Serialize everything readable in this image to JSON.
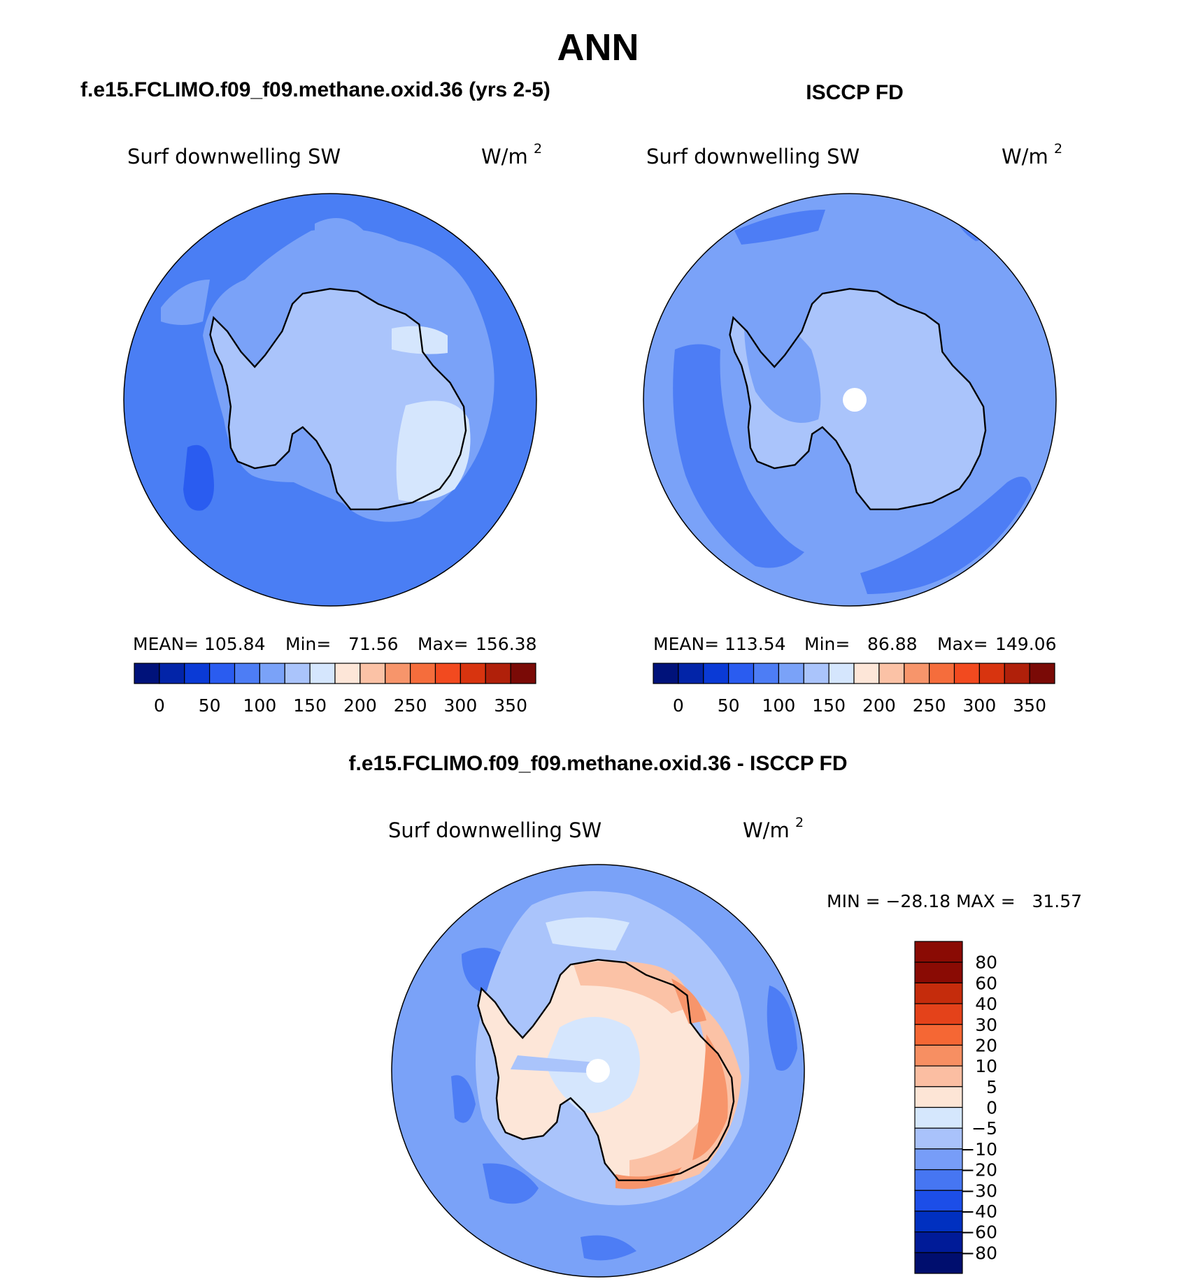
{
  "figure": {
    "title": "ANN",
    "panels": [
      {
        "id": "model",
        "header": "f.e15.FCLIMO.f09_f09.methane.oxid.36 (yrs 2-5)",
        "variable": "Surf downwelling SW",
        "units_base": "W/m",
        "units_exp": "2",
        "stats": {
          "mean_label": "MEAN=",
          "mean": "105.84",
          "min_label": "Min=",
          "min": "71.56",
          "max_label": "Max=",
          "max": "156.38"
        }
      },
      {
        "id": "obs",
        "header": "ISCCP FD",
        "variable": "Surf downwelling SW",
        "units_base": "W/m",
        "units_exp": "2",
        "stats": {
          "mean_label": "MEAN=",
          "mean": "113.54",
          "min_label": "Min=",
          "min": "86.88",
          "max_label": "Max=",
          "max": "149.06"
        }
      },
      {
        "id": "diff",
        "header": "f.e15.FCLIMO.f09_f09.methane.oxid.36 - ISCCP FD",
        "variable": "Surf downwelling SW",
        "units_base": "W/m",
        "units_exp": "2",
        "minmax_text": "MIN = −28.18 MAX =   31.57"
      }
    ],
    "colorbar_horizontal": {
      "colors": [
        "#00127a",
        "#0224a8",
        "#0a3ad6",
        "#2a5cf0",
        "#4d7df5",
        "#7aa2f8",
        "#aac4fb",
        "#d5e6fd",
        "#fde6d8",
        "#fbc2a6",
        "#f7956b",
        "#f56d3c",
        "#f24a1f",
        "#d8340f",
        "#b0200a",
        "#7a0a06"
      ],
      "labels": [
        "0",
        "50",
        "100",
        "150",
        "200",
        "250",
        "300",
        "350"
      ]
    },
    "colorbar_vertical": {
      "colors_bottom_to_top": [
        "#000e6e",
        "#001b98",
        "#0030c0",
        "#1c4ee8",
        "#4676f2",
        "#779df8",
        "#a9c2fb",
        "#d5e7fd",
        "#fde5d6",
        "#fbbea2",
        "#f78f62",
        "#f56734",
        "#e4421a",
        "#c52c0c",
        "#8a0b04"
      ],
      "labels_top_to_bottom": [
        "80",
        "60",
        "40",
        "30",
        "20",
        "10",
        "5",
        "0",
        "−5",
        "−10",
        "−20",
        "−30",
        "−40",
        "−60",
        "−80"
      ]
    },
    "map_colors": {
      "ocean_model": "#4a7ef4",
      "ocean_model_deep": "#2a5cf0",
      "coast_band_model": "#7aa2f8",
      "interior_model": "#aac4fb",
      "high_model": "#d5e6fd",
      "ocean_obs": "#7aa2f8",
      "ocean_obs_dark": "#4d7df5",
      "interior_obs": "#aac4fb",
      "diff_ocean": "#7aa2f8",
      "diff_dark": "#4d7df5",
      "diff_light": "#aac4fb",
      "diff_pale": "#d5e6fd",
      "diff_warm1": "#fde6d8",
      "diff_warm2": "#fbc2a6",
      "diff_warm3": "#f7956b",
      "pole": "#ffffff",
      "coast": "#000000"
    }
  }
}
